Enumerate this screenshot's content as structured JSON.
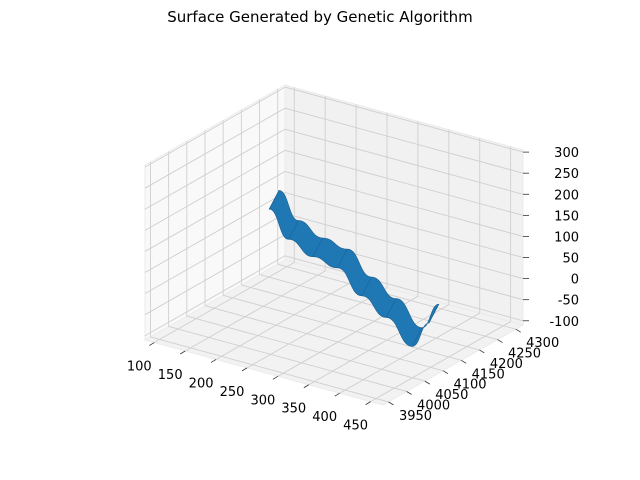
{
  "chart_data": {
    "type": "surface3d",
    "title": "Surface Generated by Genetic Algorithm",
    "xlabel": "",
    "ylabel": "",
    "zlabel": "",
    "grid": true,
    "x_ticks": [
      100,
      150,
      200,
      250,
      300,
      350,
      400,
      450
    ],
    "y_ticks": [
      3950,
      4000,
      4050,
      4100,
      4150,
      4200,
      4250,
      4300
    ],
    "z_ticks": [
      -100,
      -50,
      0,
      50,
      100,
      150,
      200,
      250,
      300
    ],
    "xlim": [
      85,
      470
    ],
    "ylim": [
      3935,
      4320
    ],
    "zlim": [
      -110,
      305
    ],
    "surface_color": "#1f77b4",
    "surface_spine": {
      "x": [
        85,
        140,
        200,
        260,
        320,
        380,
        440,
        470
      ],
      "y": [
        4290,
        4250,
        4215,
        4180,
        4145,
        4110,
        4080,
        4075
      ],
      "z": [
        55,
        25,
        25,
        40,
        15,
        5,
        -25,
        45
      ]
    }
  }
}
